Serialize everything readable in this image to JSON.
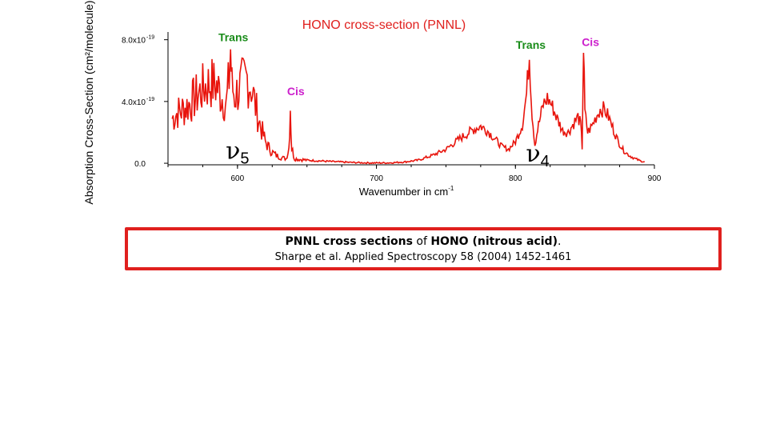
{
  "chart_data": {
    "type": "line",
    "title": "HONO cross-section (PNNL)",
    "xlabel": "Wavenumber in cm",
    "xlabel_sup": "-1",
    "ylabel": "Absorption Cross-Section (cm²/molecule)",
    "xlim": [
      550,
      900
    ],
    "ylim": [
      -1e-20,
      8.5e-19
    ],
    "x_ticks": [
      600,
      700,
      800,
      900
    ],
    "x_tick_labels": [
      "600",
      "700",
      "800",
      "900"
    ],
    "y_ticks": [
      0,
      4e-19,
      8e-19
    ],
    "y_tick_labels": [
      "0.0",
      "4.0x10",
      "8.0x10"
    ],
    "y_tick_sup": [
      "",
      "-19",
      "-19"
    ],
    "line_color": "#e8140c",
    "title_color": "#e0201e",
    "series": [
      {
        "x": [
          553,
          557,
          561,
          565,
          569,
          573,
          577,
          581,
          585,
          589,
          592,
          594,
          595,
          596,
          598,
          601,
          604,
          607,
          610,
          613,
          616,
          620,
          624,
          628,
          632,
          635,
          637,
          638,
          639,
          641,
          645,
          650,
          660,
          670,
          680,
          690,
          700,
          710,
          720,
          730,
          740,
          750,
          760,
          770,
          775,
          780,
          785,
          790,
          795,
          800,
          805,
          808,
          810,
          812,
          814,
          816,
          818,
          820,
          823,
          826,
          830,
          834,
          838,
          842,
          845,
          847,
          848,
          849,
          850,
          852,
          855,
          858,
          861,
          864,
          867,
          870,
          874,
          878,
          882,
          886,
          890,
          893
        ],
        "y": [
          2.9e-19,
          3.3e-19,
          3.5e-19,
          3.8e-19,
          4.2e-19,
          4.6e-19,
          5e-19,
          5.2e-19,
          5e-19,
          4.3e-19,
          3.8e-19,
          5.5e-19,
          7.4e-19,
          5e-19,
          4.4e-19,
          4.8e-19,
          5.2e-19,
          5.5e-19,
          5e-19,
          3.7e-19,
          2.6e-19,
          1.4e-19,
          8e-20,
          5e-20,
          3.5e-20,
          3e-20,
          1e-19,
          3.8e-19,
          1e-19,
          3e-20,
          2.5e-20,
          2e-20,
          1.5e-20,
          1e-20,
          6e-21,
          3e-21,
          2e-21,
          3e-21,
          8e-21,
          2e-20,
          5e-20,
          9e-20,
          1.6e-19,
          2.2e-19,
          2.4e-19,
          2.1e-19,
          1.6e-19,
          1.1e-19,
          9e-20,
          1.4e-19,
          2.5e-19,
          4.5e-19,
          7e-19,
          3.2e-19,
          1.2e-19,
          2.2e-19,
          3e-19,
          3.8e-19,
          4.2e-19,
          3.8e-19,
          2.9e-19,
          2.1e-19,
          2e-19,
          2.6e-19,
          3e-19,
          2.5e-19,
          1e-19,
          7.4e-19,
          3.3e-19,
          2e-19,
          2.4e-19,
          3e-19,
          3.5e-19,
          3.5e-19,
          3e-19,
          2.3e-19,
          1.4e-19,
          8e-20,
          5e-20,
          3e-20,
          1.5e-20,
          1e-20
        ]
      }
    ],
    "annotations": [
      {
        "text": "Trans",
        "x": 597,
        "y": 7.9e-19,
        "color": "#1a8c1a"
      },
      {
        "text": "Cis",
        "x": 642,
        "y": 4.4e-19,
        "color": "#cc1fcc"
      },
      {
        "text": "Trans",
        "x": 811,
        "y": 7.4e-19,
        "color": "#1a8c1a"
      },
      {
        "text": "Cis",
        "x": 854,
        "y": 7.6e-19,
        "color": "#cc1fcc"
      }
    ],
    "band_labels": [
      {
        "symbol": "ν",
        "sub": "5",
        "x": 595,
        "y": 3e-20
      },
      {
        "symbol": "ν",
        "sub": "4",
        "x": 811,
        "y": 1e-20
      }
    ]
  },
  "caption": {
    "line1_a": "PNNL cross sections",
    "line1_b": " of ",
    "line1_c": "HONO (nitrous acid)",
    "line1_d": ".",
    "line2": "Sharpe et al. Applied Spectroscopy 58 (2004) 1452-1461"
  }
}
